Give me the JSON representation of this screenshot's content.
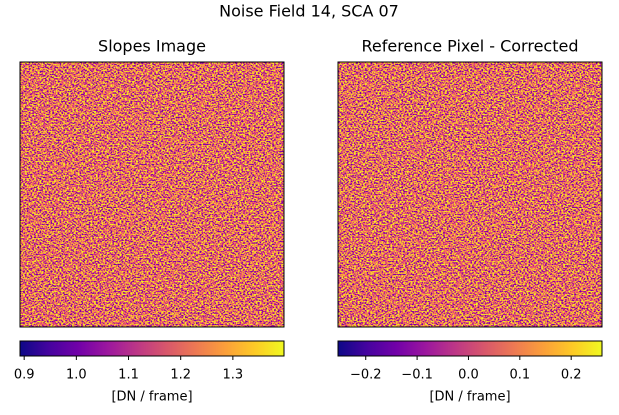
{
  "title": "Noise Field 14, SCA 07",
  "chart_data": [
    {
      "type": "heatmap",
      "title": "Slopes Image",
      "colormap": "plasma",
      "colorbar": {
        "label": "[DN / frame]",
        "clim": [
          0.892,
          1.398
        ],
        "ticks": [
          0.9,
          {
            "value": 1,
            "label": "1.0"
          },
          1.1,
          1.2,
          1.3
        ]
      }
    },
    {
      "type": "heatmap",
      "title": "Reference Pixel - Corrected",
      "colormap": "plasma",
      "colorbar": {
        "label": "[DN / frame]",
        "clim": [
          -0.254,
          0.26
        ],
        "ticks": [
          {
            "value": -0.2,
            "label": "−0.2"
          },
          {
            "value": -0.1,
            "label": "−0.1"
          },
          {
            "value": 0,
            "label": "0.0"
          },
          0.1,
          0.2
        ]
      }
    }
  ]
}
